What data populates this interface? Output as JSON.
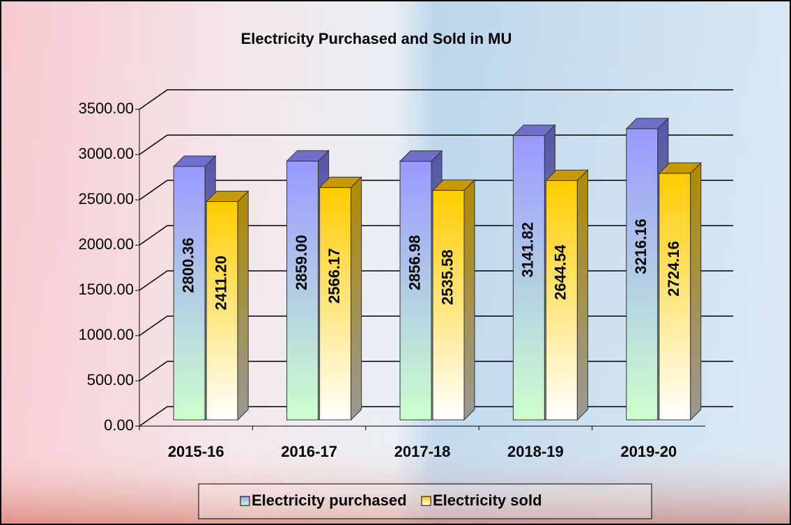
{
  "chart_data": {
    "type": "bar3d",
    "title": "Electricity Purchased and Sold in MU",
    "categories": [
      "2015-16",
      "2016-17",
      "2017-18",
      "2018-19",
      "2019-20"
    ],
    "series": [
      {
        "name": "Electricity purchased",
        "color": "#9999ff",
        "values": [
          2800.36,
          2859.0,
          2856.98,
          3141.82,
          3216.16
        ],
        "value_labels": [
          "2800.36",
          "2859.00",
          "2856.98",
          "3141.82",
          "3216.16"
        ]
      },
      {
        "name": "Electricity sold",
        "color": "#ffcc00",
        "values": [
          2411.2,
          2566.17,
          2535.58,
          2644.54,
          2724.16
        ],
        "value_labels": [
          "2411.20",
          "2566.17",
          "2535.58",
          "2644.54",
          "2724.16"
        ]
      }
    ],
    "ylim": [
      0,
      3500
    ],
    "yticks": [
      {
        "value": 0,
        "label": "0.00"
      },
      {
        "value": 500,
        "label": "500.00"
      },
      {
        "value": 1000,
        "label": "1000.00"
      },
      {
        "value": 1500,
        "label": "1500.00"
      },
      {
        "value": 2000,
        "label": "2000.00"
      },
      {
        "value": 2500,
        "label": "2500.00"
      },
      {
        "value": 3000,
        "label": "3000.00"
      },
      {
        "value": 3500,
        "label": "3500.00"
      }
    ],
    "grid": true,
    "legend": "bottom"
  }
}
